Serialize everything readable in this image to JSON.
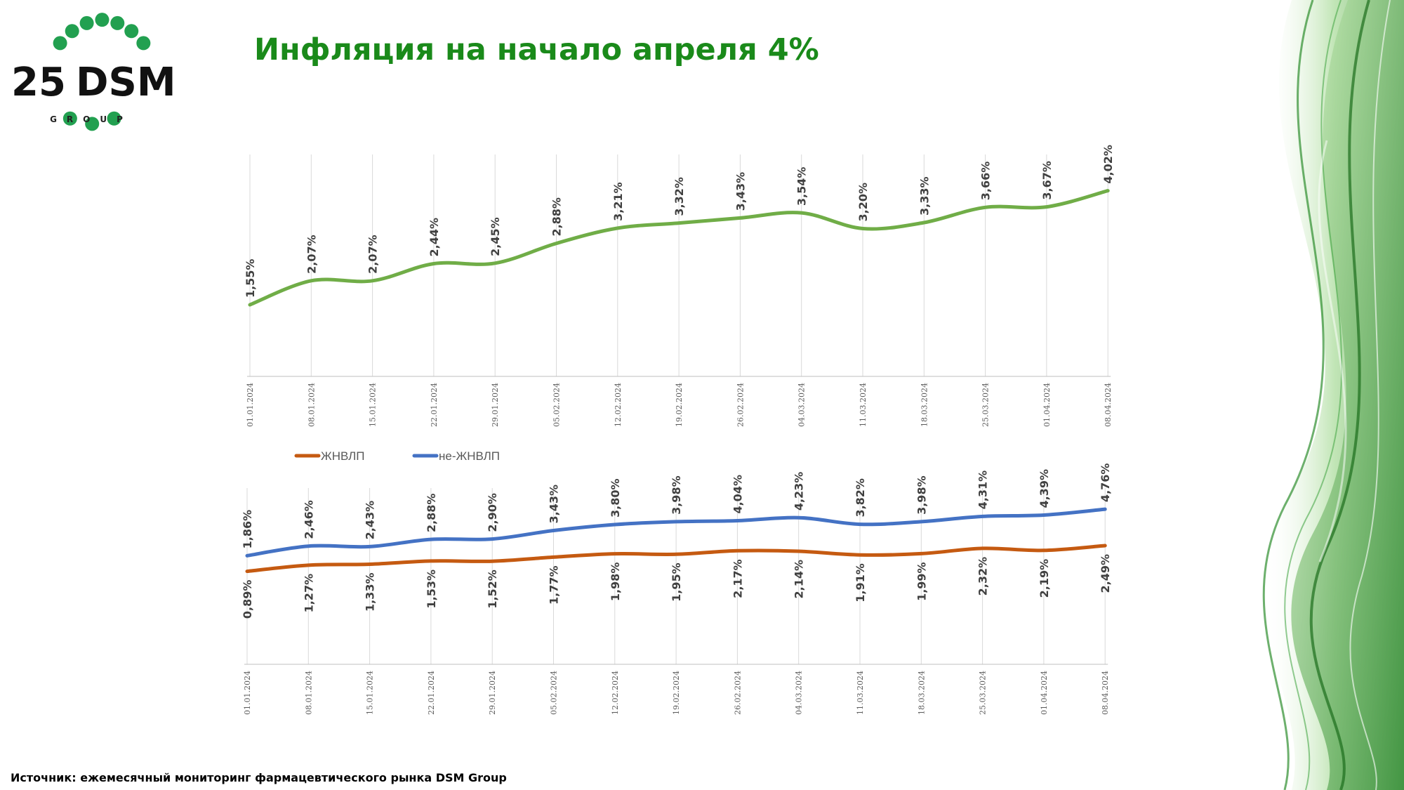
{
  "logo": {
    "number": "25",
    "name": "DSM",
    "sub": "GROUP"
  },
  "page": {
    "title": "Инфляция на начало апреля 4%"
  },
  "source": "Источник: ежемесячный мониторинг фармацевтического рынка DSM Group",
  "colors": {
    "title": "#1a8a1a",
    "total_line": "#70ad47",
    "jnvlp_line": "#c55a11",
    "nonjnvlp_line": "#4472c4",
    "logo_dots": "#22a050"
  },
  "chart_data": [
    {
      "type": "line",
      "title": "",
      "x": [
        "01.01.2024",
        "08.01.2024",
        "15.01.2024",
        "22.01.2024",
        "29.01.2024",
        "05.02.2024",
        "12.02.2024",
        "19.02.2024",
        "26.02.2024",
        "04.03.2024",
        "11.03.2024",
        "18.03.2024",
        "25.03.2024",
        "01.04.2024",
        "08.04.2024"
      ],
      "series": [
        {
          "values": [
            1.55,
            2.07,
            2.07,
            2.44,
            2.45,
            2.88,
            3.21,
            3.32,
            3.43,
            3.54,
            3.2,
            3.33,
            3.66,
            3.67,
            4.02
          ],
          "labels": [
            "1,55%",
            "2,07%",
            "2,07%",
            "2,44%",
            "2,45%",
            "2,88%",
            "3,21%",
            "3,32%",
            "3,43%",
            "3,54%",
            "3,20%",
            "3,33%",
            "3,66%",
            "3,67%",
            "4,02%"
          ]
        }
      ],
      "ylim": [
        0,
        4.5
      ],
      "grid": "vertical",
      "legend": "none"
    },
    {
      "type": "line",
      "title": "",
      "x": [
        "01.01.2024",
        "08.01.2024",
        "15.01.2024",
        "22.01.2024",
        "29.01.2024",
        "05.02.2024",
        "12.02.2024",
        "19.02.2024",
        "26.02.2024",
        "04.03.2024",
        "11.03.2024",
        "18.03.2024",
        "25.03.2024",
        "01.04.2024",
        "08.04.2024"
      ],
      "series": [
        {
          "name": "ЖНВЛП",
          "values": [
            0.89,
            1.27,
            1.33,
            1.53,
            1.52,
            1.77,
            1.98,
            1.95,
            2.17,
            2.14,
            1.91,
            1.99,
            2.32,
            2.19,
            2.49
          ],
          "labels": [
            "0,89%",
            "1,27%",
            "1,33%",
            "1,53%",
            "1,52%",
            "1,77%",
            "1,98%",
            "1,95%",
            "2,17%",
            "2,14%",
            "1,91%",
            "1,99%",
            "2,32%",
            "2,19%",
            "2,49%"
          ]
        },
        {
          "name": "не-ЖНВЛП",
          "values": [
            1.86,
            2.46,
            2.43,
            2.88,
            2.9,
            3.43,
            3.8,
            3.98,
            4.04,
            4.23,
            3.82,
            3.98,
            4.31,
            4.39,
            4.76
          ],
          "labels": [
            "1,86%",
            "2,46%",
            "2,43%",
            "2,88%",
            "2,90%",
            "3,43%",
            "3,80%",
            "3,98%",
            "4,04%",
            "4,23%",
            "3,82%",
            "3,98%",
            "4,31%",
            "4,39%",
            "4,76%"
          ]
        }
      ],
      "ylim": [
        -4.9,
        5.2
      ],
      "grid": "vertical",
      "legend": "top-left"
    }
  ]
}
